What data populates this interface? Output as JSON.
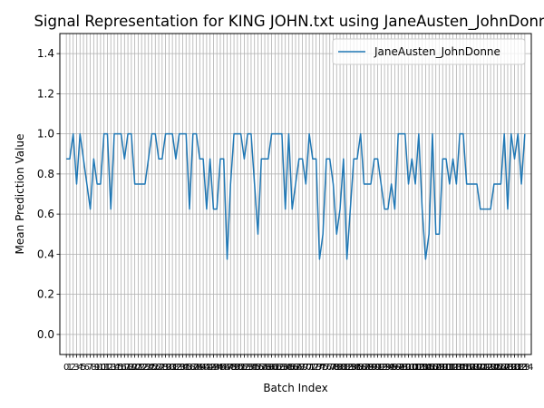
{
  "chart_data": {
    "type": "line",
    "title": "Signal Representation for KING JOHN.txt using JaneAusten_JohnDonne",
    "xlabel": "Batch Index",
    "ylabel": "Mean Prediction Value",
    "xlim": [
      -1.9,
      135.9
    ],
    "ylim": [
      -0.1,
      1.5
    ],
    "yticks": [
      0.0,
      0.2,
      0.4,
      0.6,
      0.8,
      1.0,
      1.2,
      1.4
    ],
    "ytick_labels": [
      "0.0",
      "0.2",
      "0.4",
      "0.6",
      "0.8",
      "1.0",
      "1.2",
      "1.4"
    ],
    "xticks": [
      0,
      1,
      2,
      3,
      4,
      5,
      6,
      7,
      8,
      9,
      10,
      11,
      12,
      13,
      14,
      15,
      16,
      17,
      18,
      19,
      20,
      21,
      22,
      23,
      24,
      25,
      26,
      27,
      28,
      29,
      30,
      31,
      32,
      33,
      34,
      35,
      36,
      37,
      38,
      39,
      40,
      41,
      42,
      43,
      44,
      45,
      46,
      47,
      48,
      49,
      50,
      51,
      52,
      53,
      54,
      55,
      56,
      57,
      58,
      59,
      60,
      61,
      62,
      63,
      64,
      65,
      66,
      67,
      68,
      69,
      70,
      71,
      72,
      73,
      74,
      75,
      76,
      77,
      78,
      79,
      80,
      81,
      82,
      83,
      84,
      85,
      86,
      87,
      88,
      89,
      90,
      91,
      92,
      93,
      94,
      95,
      96,
      97,
      98,
      99,
      100,
      101,
      102,
      103,
      104,
      105,
      106,
      107,
      108,
      109,
      110,
      111,
      112,
      113,
      114,
      115,
      116,
      117,
      118,
      119,
      120,
      121,
      122,
      123,
      124,
      125,
      126,
      127,
      128,
      129,
      130,
      131,
      132,
      133,
      134
    ],
    "grid": true,
    "legend_position": "upper right",
    "series": [
      {
        "name": "JaneAusten_JohnDonne",
        "color": "#1f77b4",
        "x": [
          0,
          1,
          2,
          3,
          4,
          5,
          6,
          7,
          8,
          9,
          10,
          11,
          12,
          13,
          14,
          15,
          16,
          17,
          18,
          19,
          20,
          21,
          22,
          23,
          24,
          25,
          26,
          27,
          28,
          29,
          30,
          31,
          32,
          33,
          34,
          35,
          36,
          37,
          38,
          39,
          40,
          41,
          42,
          43,
          44,
          45,
          46,
          47,
          48,
          49,
          50,
          51,
          52,
          53,
          54,
          55,
          56,
          57,
          58,
          59,
          60,
          61,
          62,
          63,
          64,
          65,
          66,
          67,
          68,
          69,
          70,
          71,
          72,
          73,
          74,
          75,
          76,
          77,
          78,
          79,
          80,
          81,
          82,
          83,
          84,
          85,
          86,
          87,
          88,
          89,
          90,
          91,
          92,
          93,
          94,
          95,
          96,
          97,
          98,
          99,
          100,
          101,
          102,
          103,
          104,
          105,
          106,
          107,
          108,
          109,
          110,
          111,
          112,
          113,
          114,
          115,
          116,
          117,
          118,
          119,
          120,
          121,
          122,
          123,
          124,
          125,
          126,
          127,
          128,
          129,
          130,
          131,
          132,
          133,
          134
        ],
        "values": [
          0.875,
          0.875,
          1.0,
          0.75,
          1.0,
          0.875,
          0.75,
          0.625,
          0.875,
          0.75,
          0.75,
          1.0,
          1.0,
          0.625,
          1.0,
          1.0,
          1.0,
          0.875,
          1.0,
          1.0,
          0.75,
          0.75,
          0.75,
          0.75,
          0.875,
          1.0,
          1.0,
          0.875,
          0.875,
          1.0,
          1.0,
          1.0,
          0.875,
          1.0,
          1.0,
          1.0,
          0.625,
          1.0,
          1.0,
          0.875,
          0.875,
          0.625,
          0.875,
          0.625,
          0.625,
          0.875,
          0.875,
          0.375,
          0.75,
          1.0,
          1.0,
          1.0,
          0.875,
          1.0,
          1.0,
          0.75,
          0.5,
          0.875,
          0.875,
          0.875,
          1.0,
          1.0,
          1.0,
          1.0,
          0.625,
          1.0,
          0.625,
          0.75,
          0.875,
          0.875,
          0.75,
          1.0,
          0.875,
          0.875,
          0.375,
          0.5,
          0.875,
          0.875,
          0.75,
          0.5,
          0.625,
          0.875,
          0.375,
          0.625,
          0.875,
          0.875,
          1.0,
          0.75,
          0.75,
          0.75,
          0.875,
          0.875,
          0.75,
          0.625,
          0.625,
          0.75,
          0.625,
          1.0,
          1.0,
          1.0,
          0.75,
          0.875,
          0.75,
          1.0,
          0.625,
          0.375,
          0.5,
          1.0,
          0.5,
          0.5,
          0.875,
          0.875,
          0.75,
          0.875,
          0.75,
          1.0,
          1.0,
          0.75,
          0.75,
          0.75,
          0.75,
          0.625,
          0.625,
          0.625,
          0.625,
          0.75,
          0.75,
          0.75,
          1.0,
          0.625,
          1.0,
          0.875,
          1.0,
          0.75,
          1.0
        ]
      }
    ]
  }
}
